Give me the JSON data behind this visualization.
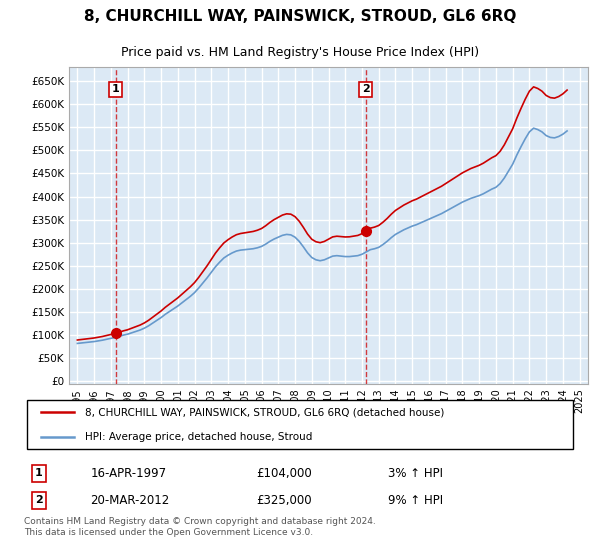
{
  "title": "8, CHURCHILL WAY, PAINSWICK, STROUD, GL6 6RQ",
  "subtitle": "Price paid vs. HM Land Registry's House Price Index (HPI)",
  "legend_label_red": "8, CHURCHILL WAY, PAINSWICK, STROUD, GL6 6RQ (detached house)",
  "legend_label_blue": "HPI: Average price, detached house, Stroud",
  "annotation1_label": "1",
  "annotation1_date": "16-APR-1997",
  "annotation1_price": "£104,000",
  "annotation1_hpi": "3% ↑ HPI",
  "annotation2_label": "2",
  "annotation2_date": "20-MAR-2012",
  "annotation2_price": "£325,000",
  "annotation2_hpi": "9% ↑ HPI",
  "yticks": [
    0,
    50000,
    100000,
    150000,
    200000,
    250000,
    300000,
    350000,
    400000,
    450000,
    500000,
    550000,
    600000,
    650000
  ],
  "ylim": [
    -5000,
    680000
  ],
  "xlim": [
    1994.5,
    2025.5
  ],
  "background_color": "#dce9f5",
  "grid_color": "#ffffff",
  "red_line_color": "#cc0000",
  "blue_line_color": "#6699cc",
  "footer_text": "Contains HM Land Registry data © Crown copyright and database right 2024.\nThis data is licensed under the Open Government Licence v3.0.",
  "hpi_years": [
    1995.0,
    1995.25,
    1995.5,
    1995.75,
    1996.0,
    1996.25,
    1996.5,
    1996.75,
    1997.0,
    1997.25,
    1997.5,
    1997.75,
    1998.0,
    1998.25,
    1998.5,
    1998.75,
    1999.0,
    1999.25,
    1999.5,
    1999.75,
    2000.0,
    2000.25,
    2000.5,
    2000.75,
    2001.0,
    2001.25,
    2001.5,
    2001.75,
    2002.0,
    2002.25,
    2002.5,
    2002.75,
    2003.0,
    2003.25,
    2003.5,
    2003.75,
    2004.0,
    2004.25,
    2004.5,
    2004.75,
    2005.0,
    2005.25,
    2005.5,
    2005.75,
    2006.0,
    2006.25,
    2006.5,
    2006.75,
    2007.0,
    2007.25,
    2007.5,
    2007.75,
    2008.0,
    2008.25,
    2008.5,
    2008.75,
    2009.0,
    2009.25,
    2009.5,
    2009.75,
    2010.0,
    2010.25,
    2010.5,
    2010.75,
    2011.0,
    2011.25,
    2011.5,
    2011.75,
    2012.0,
    2012.25,
    2012.5,
    2012.75,
    2013.0,
    2013.25,
    2013.5,
    2013.75,
    2014.0,
    2014.25,
    2014.5,
    2014.75,
    2015.0,
    2015.25,
    2015.5,
    2015.75,
    2016.0,
    2016.25,
    2016.5,
    2016.75,
    2017.0,
    2017.25,
    2017.5,
    2017.75,
    2018.0,
    2018.25,
    2018.5,
    2018.75,
    2019.0,
    2019.25,
    2019.5,
    2019.75,
    2020.0,
    2020.25,
    2020.5,
    2020.75,
    2021.0,
    2021.25,
    2021.5,
    2021.75,
    2022.0,
    2022.25,
    2022.5,
    2022.75,
    2023.0,
    2023.25,
    2023.5,
    2023.75,
    2024.0,
    2024.25
  ],
  "hpi_values": [
    82000,
    83000,
    84000,
    85000,
    86000,
    87500,
    89000,
    91000,
    93000,
    95000,
    97500,
    100000,
    102000,
    105000,
    108000,
    111000,
    115000,
    120000,
    126000,
    132000,
    138000,
    145000,
    151000,
    157000,
    163000,
    170000,
    177000,
    184000,
    192000,
    202000,
    213000,
    224000,
    236000,
    248000,
    258000,
    267000,
    273000,
    278000,
    282000,
    284000,
    285000,
    286000,
    287000,
    289000,
    292000,
    297000,
    303000,
    308000,
    312000,
    316000,
    318000,
    317000,
    312000,
    303000,
    291000,
    278000,
    268000,
    263000,
    261000,
    263000,
    267000,
    271000,
    272000,
    271000,
    270000,
    270000,
    271000,
    272000,
    275000,
    280000,
    285000,
    287000,
    290000,
    296000,
    303000,
    311000,
    318000,
    323000,
    328000,
    332000,
    336000,
    339000,
    343000,
    347000,
    351000,
    355000,
    359000,
    363000,
    368000,
    373000,
    378000,
    383000,
    388000,
    392000,
    396000,
    399000,
    402000,
    406000,
    411000,
    416000,
    420000,
    428000,
    440000,
    455000,
    470000,
    490000,
    508000,
    525000,
    540000,
    548000,
    545000,
    540000,
    532000,
    528000,
    527000,
    530000,
    535000,
    542000
  ],
  "sale_years": [
    1997.29,
    2012.22
  ],
  "sale_prices": [
    104000,
    325000
  ],
  "xticks": [
    1995,
    1996,
    1997,
    1998,
    1999,
    2000,
    2001,
    2002,
    2003,
    2004,
    2005,
    2006,
    2007,
    2008,
    2009,
    2010,
    2011,
    2012,
    2013,
    2014,
    2015,
    2016,
    2017,
    2018,
    2019,
    2020,
    2021,
    2022,
    2023,
    2024,
    2025
  ]
}
